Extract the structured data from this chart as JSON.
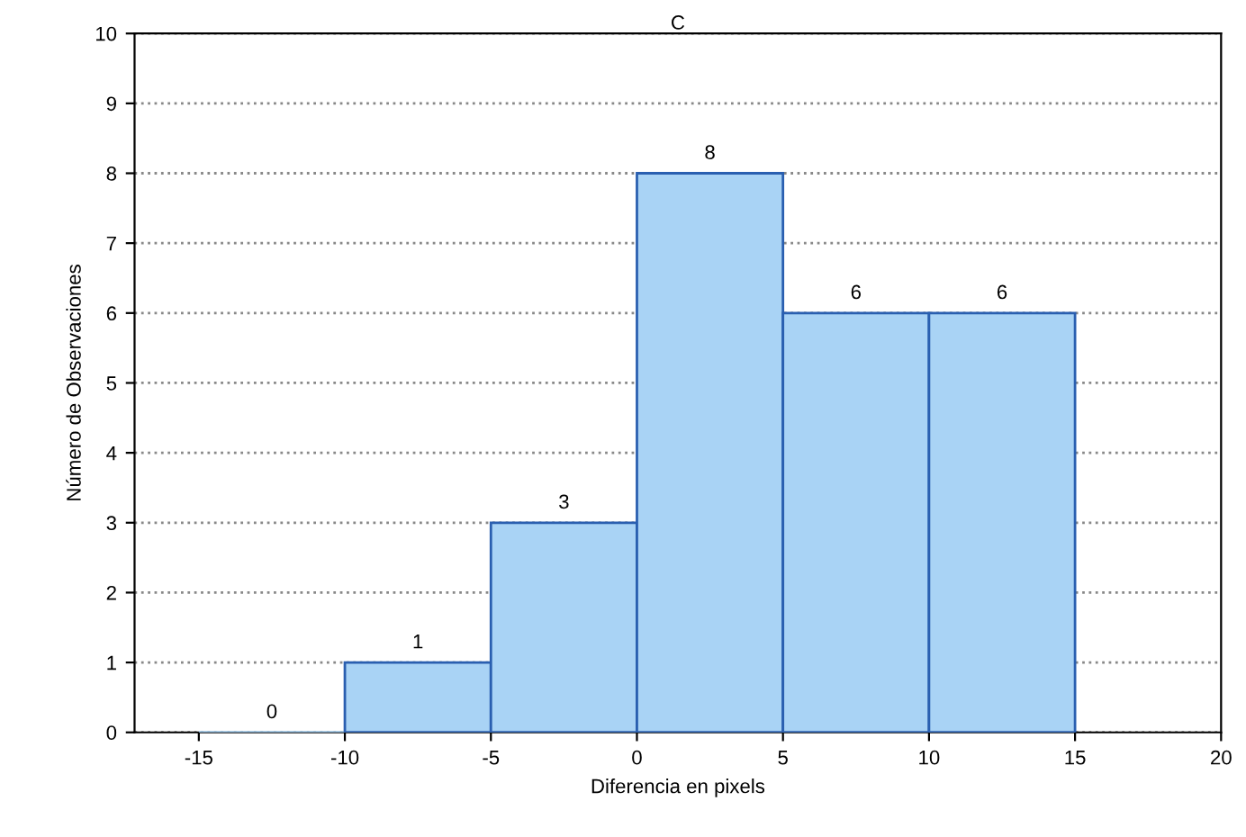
{
  "chart_data": {
    "type": "histogram",
    "title": "C",
    "xlabel": "Diferencia en pixels",
    "ylabel": "Número de Observaciones",
    "bins": [
      -15,
      -10,
      -5,
      0,
      5,
      10,
      15
    ],
    "values": [
      0,
      1,
      3,
      8,
      6,
      6
    ],
    "color": "#a9d3f5",
    "xlim": [
      -17.2,
      20
    ],
    "xticks": [
      -15,
      -10,
      -5,
      0,
      5,
      10,
      15,
      20
    ],
    "ylim": [
      0,
      10
    ],
    "yticks": [
      0,
      1,
      2,
      3,
      4,
      5,
      6,
      7,
      8,
      9,
      10
    ],
    "grid": "y",
    "data_labels": true
  }
}
